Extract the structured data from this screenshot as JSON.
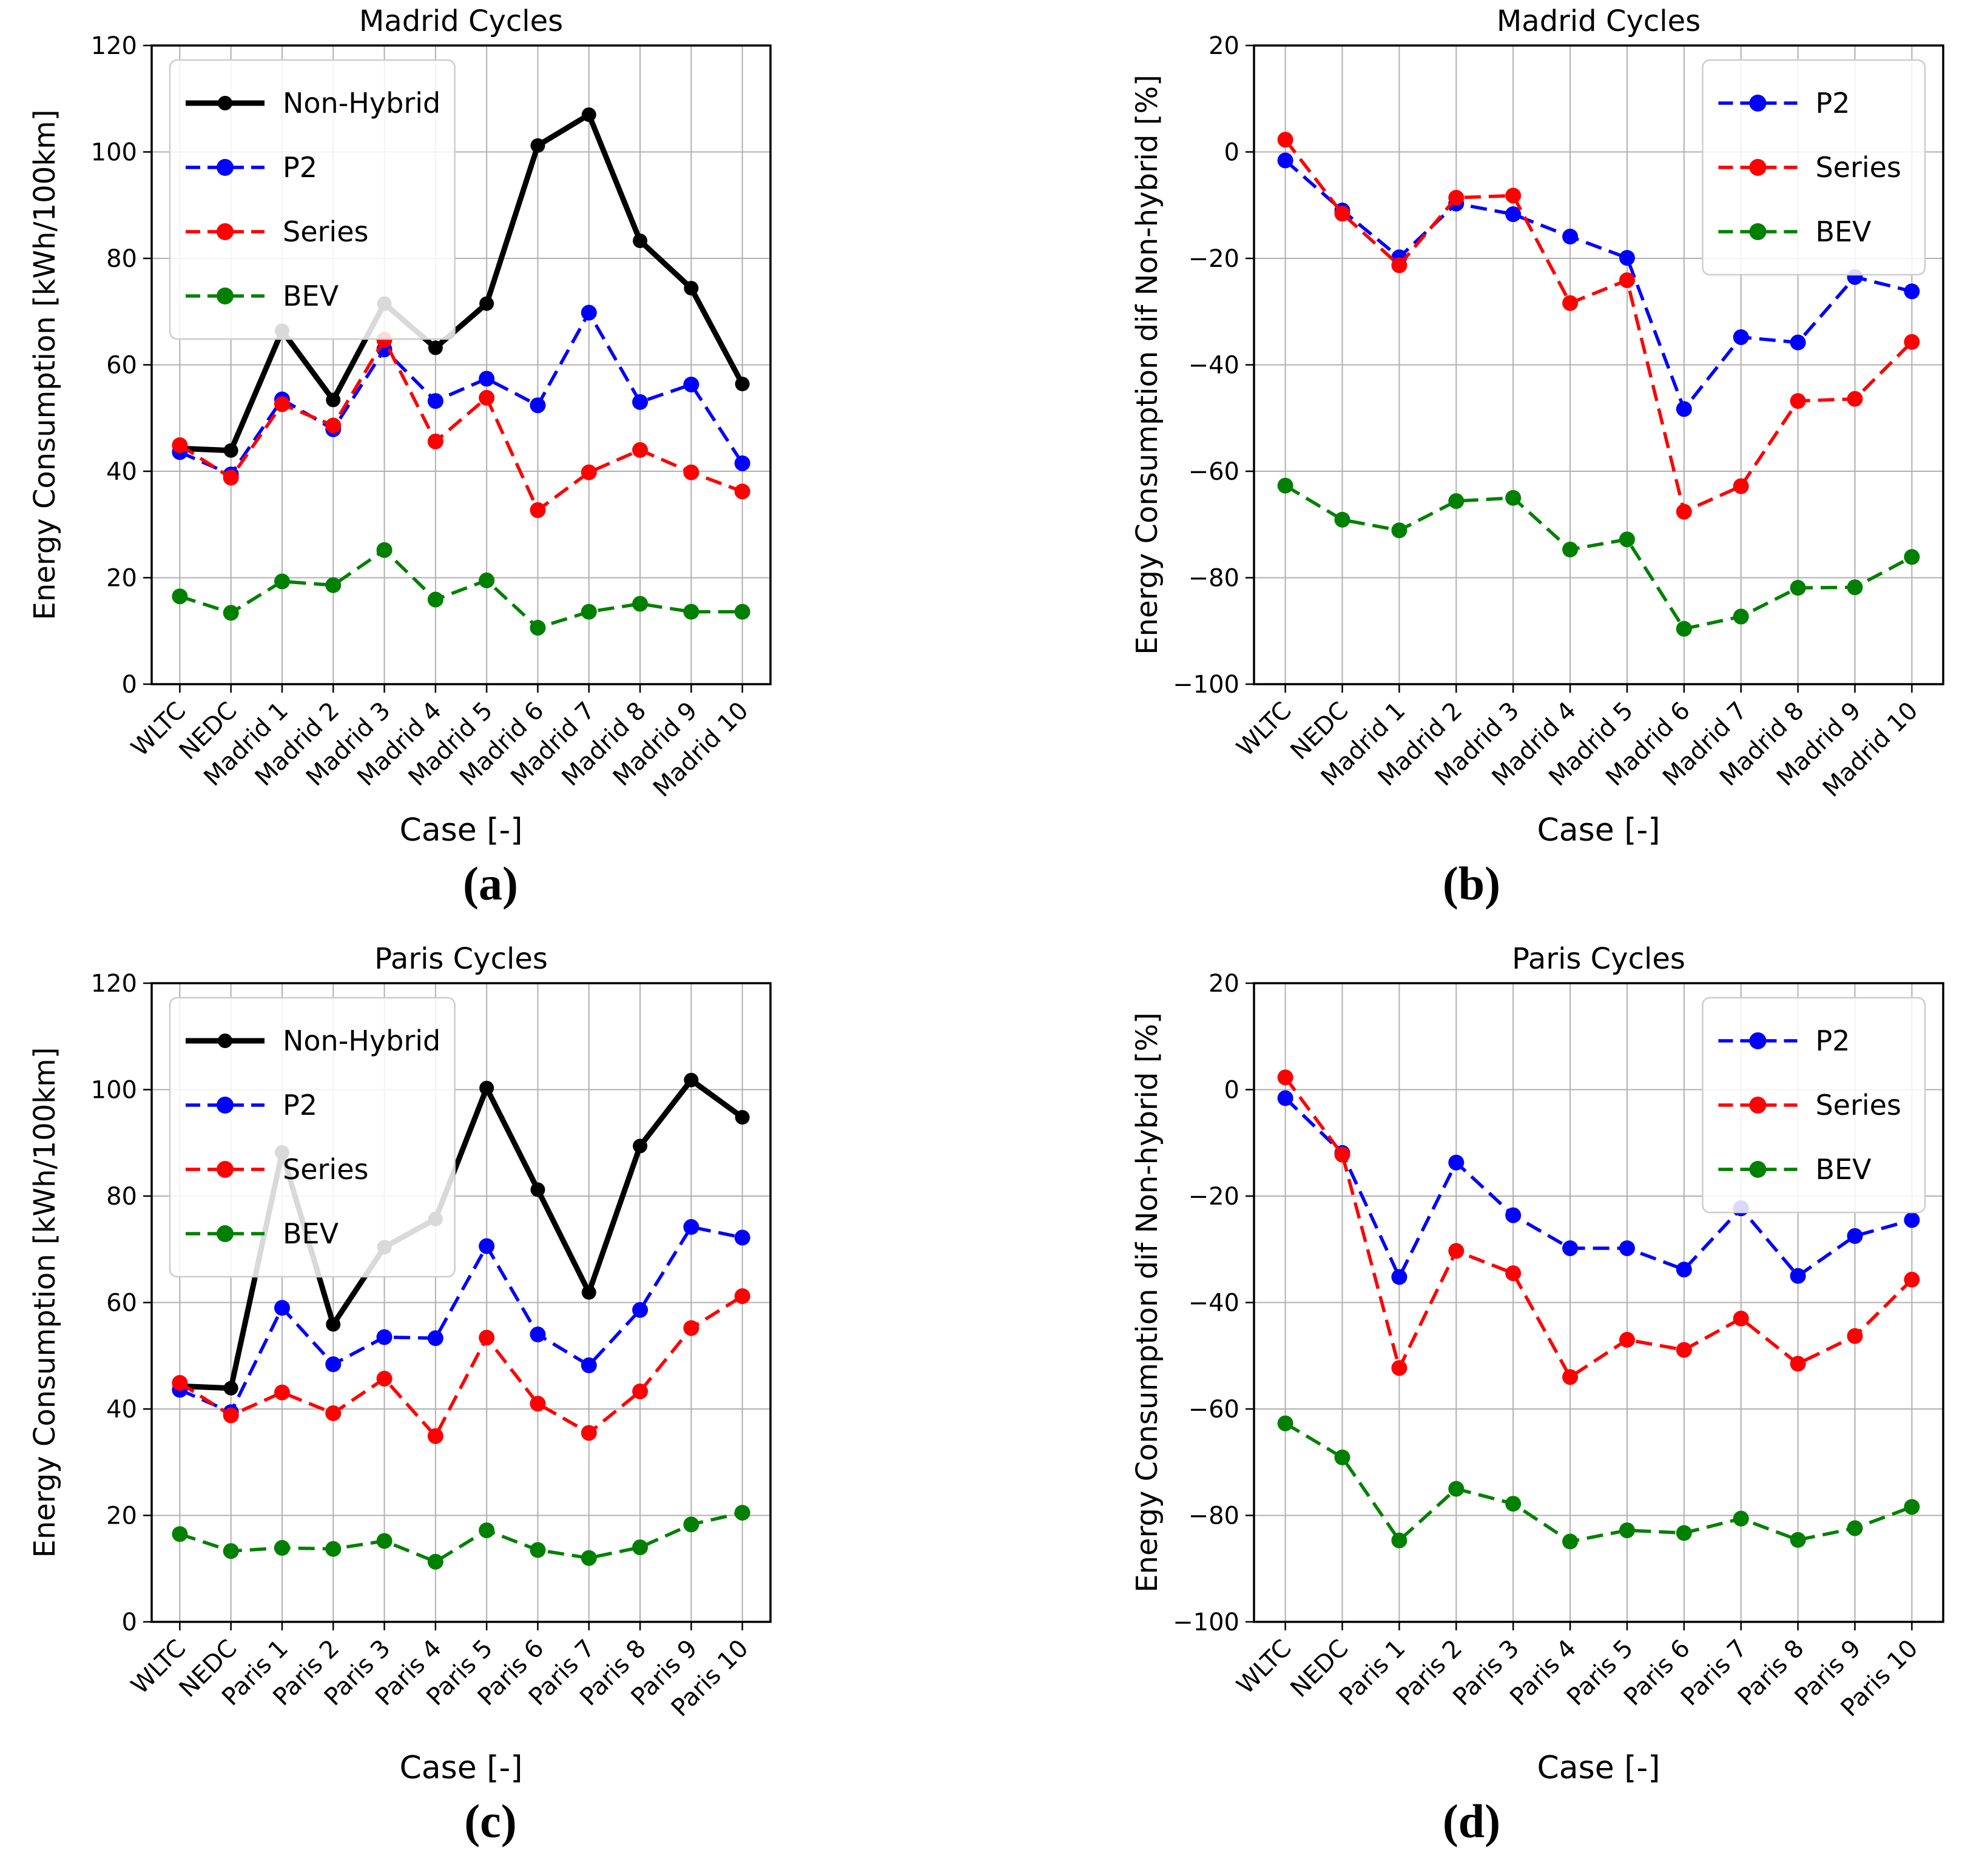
{
  "figure": {
    "background": "#ffffff",
    "grid_color": "#b0b0b0",
    "frame_color": "#000000",
    "captions": {
      "a": "(a)",
      "b": "(b)",
      "c": "(c)",
      "d": "(d)"
    }
  },
  "chart_data": [
    {
      "id": "a",
      "type": "line",
      "title": "Madrid Cycles",
      "xlabel": "Case [-]",
      "ylabel": "Energy Consumption [kWh/100km]",
      "caption": "(a)",
      "categories": [
        "WLTC",
        "NEDC",
        "Madrid 1",
        "Madrid 2",
        "Madrid 3",
        "Madrid 4",
        "Madrid 5",
        "Madrid 6",
        "Madrid 7",
        "Madrid 8",
        "Madrid 9",
        "Madrid 10"
      ],
      "ylim": [
        0,
        120
      ],
      "yticks": [
        0,
        20,
        40,
        60,
        80,
        100,
        120
      ],
      "grid": true,
      "legend_position": "upper-left",
      "series": [
        {
          "name": "Non-Hybrid",
          "color": "#000000",
          "dash": "solid",
          "values": [
            44.3,
            43.9,
            66.4,
            53.4,
            71.5,
            63.2,
            71.5,
            101.2,
            107.0,
            83.3,
            74.4,
            56.4
          ]
        },
        {
          "name": "P2",
          "color": "#0000ff",
          "dash": "dashed",
          "values": [
            43.6,
            39.4,
            53.5,
            47.9,
            62.9,
            53.2,
            57.4,
            52.4,
            69.8,
            53.0,
            56.3,
            41.5
          ]
        },
        {
          "name": "Series",
          "color": "#ff0000",
          "dash": "dashed",
          "values": [
            44.9,
            38.8,
            52.6,
            48.6,
            64.7,
            45.6,
            53.8,
            32.7,
            39.8,
            44.0,
            39.8,
            36.2
          ]
        },
        {
          "name": "BEV",
          "color": "#008000",
          "dash": "dashed",
          "values": [
            16.5,
            13.4,
            19.3,
            18.6,
            25.2,
            15.9,
            19.5,
            10.6,
            13.6,
            15.1,
            13.6,
            13.6
          ]
        }
      ]
    },
    {
      "id": "b",
      "type": "line",
      "title": "Madrid Cycles",
      "xlabel": "Case [-]",
      "ylabel": "Energy Consumption dif Non-hybrid [%]",
      "caption": "(b)",
      "categories": [
        "WLTC",
        "NEDC",
        "Madrid 1",
        "Madrid 2",
        "Madrid 3",
        "Madrid 4",
        "Madrid 5",
        "Madrid 6",
        "Madrid 7",
        "Madrid 8",
        "Madrid 9",
        "Madrid 10"
      ],
      "ylim": [
        -100,
        20
      ],
      "yticks": [
        -100,
        -80,
        -60,
        -40,
        -20,
        0,
        20
      ],
      "grid": true,
      "legend_position": "upper-right",
      "series": [
        {
          "name": "P2",
          "color": "#0000ff",
          "dash": "dashed",
          "values": [
            -1.6,
            -11.0,
            -19.8,
            -9.7,
            -11.7,
            -15.9,
            -19.9,
            -48.3,
            -34.8,
            -35.8,
            -23.5,
            -26.2
          ]
        },
        {
          "name": "Series",
          "color": "#ff0000",
          "dash": "dashed",
          "values": [
            2.3,
            -11.6,
            -21.3,
            -8.6,
            -8.2,
            -28.4,
            -24.1,
            -67.6,
            -62.8,
            -46.8,
            -46.4,
            -35.7
          ]
        },
        {
          "name": "BEV",
          "color": "#008000",
          "dash": "dashed",
          "values": [
            -62.7,
            -69.1,
            -71.1,
            -65.6,
            -65.0,
            -74.7,
            -72.8,
            -89.6,
            -87.3,
            -81.9,
            -81.8,
            -76.1
          ]
        }
      ]
    },
    {
      "id": "c",
      "type": "line",
      "title": "Paris Cycles",
      "xlabel": "Case [-]",
      "ylabel": "Energy Consumption [kWh/100km]",
      "caption": "(c)",
      "categories": [
        "WLTC",
        "NEDC",
        "Paris 1",
        "Paris 2",
        "Paris 3",
        "Paris 4",
        "Paris 5",
        "Paris 6",
        "Paris 7",
        "Paris 8",
        "Paris 9",
        "Paris 10"
      ],
      "ylim": [
        0,
        120
      ],
      "yticks": [
        0,
        20,
        40,
        60,
        80,
        100,
        120
      ],
      "grid": true,
      "legend_position": "upper-left",
      "series": [
        {
          "name": "Non-Hybrid",
          "color": "#000000",
          "dash": "solid",
          "values": [
            44.3,
            43.9,
            88.2,
            55.9,
            70.4,
            75.7,
            100.3,
            81.2,
            61.9,
            89.4,
            101.8,
            94.8
          ]
        },
        {
          "name": "P2",
          "color": "#0000ff",
          "dash": "dashed",
          "values": [
            43.6,
            39.4,
            59.0,
            48.4,
            53.5,
            53.3,
            70.6,
            54.0,
            48.2,
            58.6,
            74.2,
            72.2
          ]
        },
        {
          "name": "Series",
          "color": "#ff0000",
          "dash": "dashed",
          "values": [
            44.9,
            38.8,
            43.1,
            39.2,
            45.7,
            34.9,
            53.4,
            41.0,
            35.5,
            43.3,
            55.2,
            61.2
          ]
        },
        {
          "name": "BEV",
          "color": "#008000",
          "dash": "dashed",
          "values": [
            16.5,
            13.3,
            13.9,
            13.7,
            15.2,
            11.3,
            17.2,
            13.5,
            12.0,
            14.0,
            18.3,
            20.5
          ]
        }
      ]
    },
    {
      "id": "d",
      "type": "line",
      "title": "Paris Cycles",
      "xlabel": "Case [-]",
      "ylabel": "Energy Consumption dif Non-hybrid [%]",
      "caption": "(d)",
      "categories": [
        "WLTC",
        "NEDC",
        "Paris 1",
        "Paris 2",
        "Paris 3",
        "Paris 4",
        "Paris 5",
        "Paris 6",
        "Paris 7",
        "Paris 8",
        "Paris 9",
        "Paris 10"
      ],
      "ylim": [
        -100,
        20
      ],
      "yticks": [
        -100,
        -80,
        -60,
        -40,
        -20,
        0,
        20
      ],
      "grid": true,
      "legend_position": "upper-right",
      "series": [
        {
          "name": "P2",
          "color": "#0000ff",
          "dash": "dashed",
          "values": [
            -1.6,
            -11.9,
            -35.2,
            -13.7,
            -23.6,
            -29.8,
            -29.8,
            -33.8,
            -22.3,
            -35.0,
            -27.5,
            -24.5
          ]
        },
        {
          "name": "Series",
          "color": "#ff0000",
          "dash": "dashed",
          "values": [
            2.3,
            -12.2,
            -52.3,
            -30.3,
            -34.5,
            -54.0,
            -47.0,
            -48.9,
            -43.0,
            -51.5,
            -46.3,
            -35.7
          ]
        },
        {
          "name": "BEV",
          "color": "#008000",
          "dash": "dashed",
          "values": [
            -62.7,
            -69.1,
            -84.7,
            -75.0,
            -77.8,
            -84.9,
            -82.8,
            -83.3,
            -80.6,
            -84.6,
            -82.4,
            -78.4
          ]
        }
      ]
    }
  ]
}
